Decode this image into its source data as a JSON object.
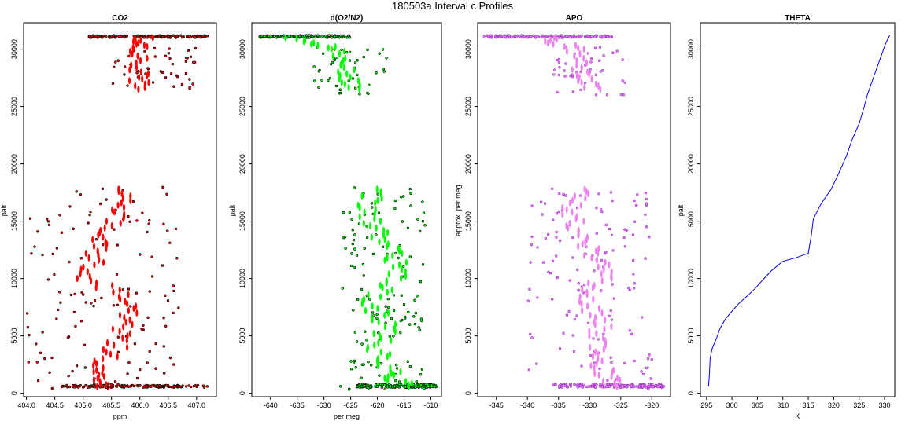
{
  "figure_title": "180503a   Interval c Profiles",
  "chart_data": [
    {
      "type": "scatter",
      "title": "CO2",
      "xlabel": "ppm",
      "ylabel": "palt",
      "xlim": [
        403.95,
        407.35
      ],
      "ylim": [
        -300,
        32300
      ],
      "xticks": [
        "404.0",
        "404.5",
        "405.0",
        "405.5",
        "406.0",
        "406.5",
        "407.0"
      ],
      "yticks": [
        "0",
        "5000",
        "10000",
        "15000",
        "20000",
        "25000",
        "30000"
      ],
      "color": "#ff0000",
      "edge_color": "#000000",
      "spans": [
        {
          "x": [
            404.6,
            407.2
          ],
          "y": [
            500,
            700
          ],
          "dense": 0.95
        },
        {
          "x": [
            404.0,
            406.7
          ],
          "y": [
            300,
            18000
          ],
          "dense": 0.15
        },
        {
          "x": [
            405.4,
            407.0
          ],
          "y": [
            26500,
            30200
          ],
          "dense": 0.05
        },
        {
          "x": [
            405.1,
            407.2
          ],
          "y": [
            31000,
            31200
          ],
          "dense": 0.9
        }
      ],
      "profile": [
        {
          "palt": 600,
          "v": 405.3
        },
        {
          "palt": 2000,
          "v": 405.2
        },
        {
          "palt": 4000,
          "v": 405.6
        },
        {
          "palt": 6000,
          "v": 405.7
        },
        {
          "palt": 8000,
          "v": 405.9
        },
        {
          "palt": 10000,
          "v": 405.1
        },
        {
          "palt": 12000,
          "v": 405.2
        },
        {
          "palt": 14000,
          "v": 405.4
        },
        {
          "palt": 16000,
          "v": 405.6
        },
        {
          "palt": 18000,
          "v": 405.8
        },
        {
          "palt": 26500,
          "v": 406.0
        },
        {
          "palt": 28000,
          "v": 406.0
        },
        {
          "palt": 30000,
          "v": 405.9
        },
        {
          "palt": 31100,
          "v": 406.1
        }
      ]
    },
    {
      "type": "scatter",
      "title": "d(O2/N2)",
      "xlabel": "per meg",
      "ylabel": "palt",
      "xlim": [
        -643.5,
        -608
      ],
      "ylim": [
        -300,
        32300
      ],
      "xticks": [
        "-640",
        "-635",
        "-630",
        "-625",
        "-620",
        "-615",
        "-610"
      ],
      "yticks": [
        "0",
        "5000",
        "10000",
        "15000",
        "20000",
        "25000",
        "30000"
      ],
      "color": "#00ff00",
      "edge_color": "#000000",
      "spans": [
        {
          "x": [
            -624,
            -609
          ],
          "y": [
            500,
            800
          ],
          "dense": 0.95
        },
        {
          "x": [
            -627,
            -611
          ],
          "y": [
            300,
            18000
          ],
          "dense": 0.15
        },
        {
          "x": [
            -632,
            -618
          ],
          "y": [
            26000,
            30200
          ],
          "dense": 0.05
        },
        {
          "x": [
            -642,
            -625
          ],
          "y": [
            31000,
            31200
          ],
          "dense": 0.9
        }
      ],
      "profile": [
        {
          "palt": 600,
          "v": -615
        },
        {
          "palt": 2000,
          "v": -618
        },
        {
          "palt": 4000,
          "v": -620
        },
        {
          "palt": 6000,
          "v": -618
        },
        {
          "palt": 8000,
          "v": -622
        },
        {
          "palt": 10000,
          "v": -616
        },
        {
          "palt": 12000,
          "v": -617
        },
        {
          "palt": 14000,
          "v": -620
        },
        {
          "palt": 16000,
          "v": -622
        },
        {
          "palt": 18000,
          "v": -620
        },
        {
          "palt": 26500,
          "v": -625
        },
        {
          "palt": 28000,
          "v": -626
        },
        {
          "palt": 30000,
          "v": -628
        },
        {
          "palt": 31100,
          "v": -636
        }
      ]
    },
    {
      "type": "scatter",
      "title": "APO",
      "xlabel": "",
      "ylabel": "approx. per meg",
      "xlim": [
        -348,
        -317
      ],
      "ylim": [
        -300,
        32300
      ],
      "xticks": [
        "-345",
        "-340",
        "-335",
        "-330",
        "-325",
        "-320"
      ],
      "yticks": [
        "0",
        "5000",
        "10000",
        "15000",
        "20000",
        "25000",
        "30000"
      ],
      "color": "#ee82ee",
      "edge_color": "#9933cc",
      "spans": [
        {
          "x": [
            -336,
            -318
          ],
          "y": [
            500,
            800
          ],
          "dense": 0.95
        },
        {
          "x": [
            -340,
            -320
          ],
          "y": [
            300,
            18000
          ],
          "dense": 0.15
        },
        {
          "x": [
            -336,
            -324
          ],
          "y": [
            26000,
            30200
          ],
          "dense": 0.05
        },
        {
          "x": [
            -347,
            -326
          ],
          "y": [
            31000,
            31200
          ],
          "dense": 0.9
        }
      ],
      "profile": [
        {
          "palt": 600,
          "v": -326
        },
        {
          "palt": 2000,
          "v": -328
        },
        {
          "palt": 4000,
          "v": -329
        },
        {
          "palt": 6000,
          "v": -328
        },
        {
          "palt": 8000,
          "v": -331
        },
        {
          "palt": 10000,
          "v": -328
        },
        {
          "palt": 12000,
          "v": -329
        },
        {
          "palt": 14000,
          "v": -332
        },
        {
          "palt": 16000,
          "v": -333
        },
        {
          "palt": 18000,
          "v": -331
        },
        {
          "palt": 26500,
          "v": -330
        },
        {
          "palt": 28000,
          "v": -331
        },
        {
          "palt": 30000,
          "v": -332
        },
        {
          "palt": 31100,
          "v": -338
        }
      ]
    },
    {
      "type": "line",
      "title": "THETA",
      "xlabel": "K",
      "ylabel": "palt",
      "xlim": [
        293.8,
        332
      ],
      "ylim": [
        -300,
        32300
      ],
      "xticks": [
        "295",
        "300",
        "305",
        "310",
        "315",
        "320",
        "325",
        "330"
      ],
      "yticks": [
        "0",
        "5000",
        "10000",
        "15000",
        "20000",
        "25000",
        "30000"
      ],
      "color": "#0000ff",
      "x": [
        295.4,
        295.6,
        295.7,
        296.1,
        296.9,
        297.6,
        298.6,
        299.9,
        301.3,
        302.8,
        304.5,
        306.1,
        307.8,
        310.0,
        312.5,
        315.0,
        315.6,
        316.0,
        317.5,
        319.5,
        321.0,
        322.5,
        323.6,
        325.0,
        326.0,
        326.6,
        327.8,
        329.0,
        330.2,
        331.0
      ],
      "y": [
        600,
        1800,
        3000,
        3900,
        4700,
        5600,
        6400,
        7100,
        7800,
        8400,
        9100,
        9900,
        10700,
        11500,
        11800,
        12200,
        13800,
        15200,
        16500,
        17800,
        19200,
        20700,
        22100,
        23500,
        25000,
        26000,
        27500,
        29000,
        30500,
        31200
      ]
    }
  ]
}
